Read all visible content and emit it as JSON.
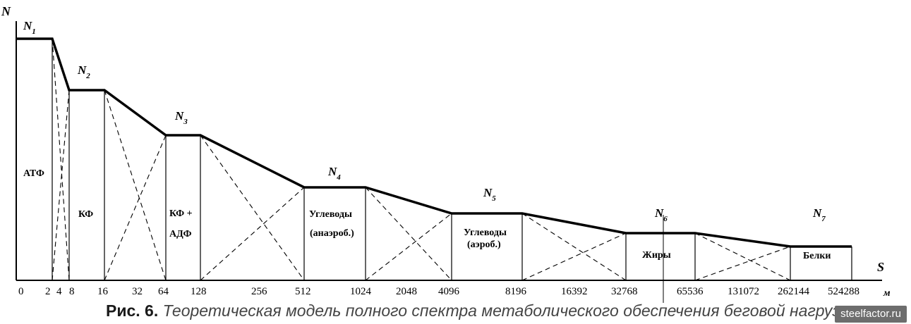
{
  "diagram": {
    "y_axis_label": "N",
    "x_axis_label": "S",
    "x_unit": "м",
    "x_ticks": [
      "0",
      "2",
      "4",
      "8",
      "16",
      "32",
      "64",
      "128",
      "256",
      "512",
      "1024",
      "2048",
      "4096",
      "8196",
      "16392",
      "32768",
      "65536",
      "131072",
      "262144",
      "524288"
    ],
    "levels": [
      {
        "label": "N",
        "sub": "1",
        "zone": "АТФ"
      },
      {
        "label": "N",
        "sub": "2",
        "zone": "КФ"
      },
      {
        "label": "N",
        "sub": "3",
        "zone": "КФ +",
        "zone2": "АДФ"
      },
      {
        "label": "N",
        "sub": "4",
        "zone": "Углеводы",
        "zone2": "(анаэроб.)"
      },
      {
        "label": "N",
        "sub": "5",
        "zone": "Углеводы",
        "zone2": "(аэроб.)"
      },
      {
        "label": "N",
        "sub": "6",
        "zone": "Жиры"
      },
      {
        "label": "N",
        "sub": "7",
        "zone": "Белки"
      }
    ]
  },
  "caption": {
    "number": "Рис. 6.",
    "text": "Теоретическая модель полного спектра метаболического обеспечения беговой нагрузки"
  },
  "watermark": "steelfactor.ru"
}
